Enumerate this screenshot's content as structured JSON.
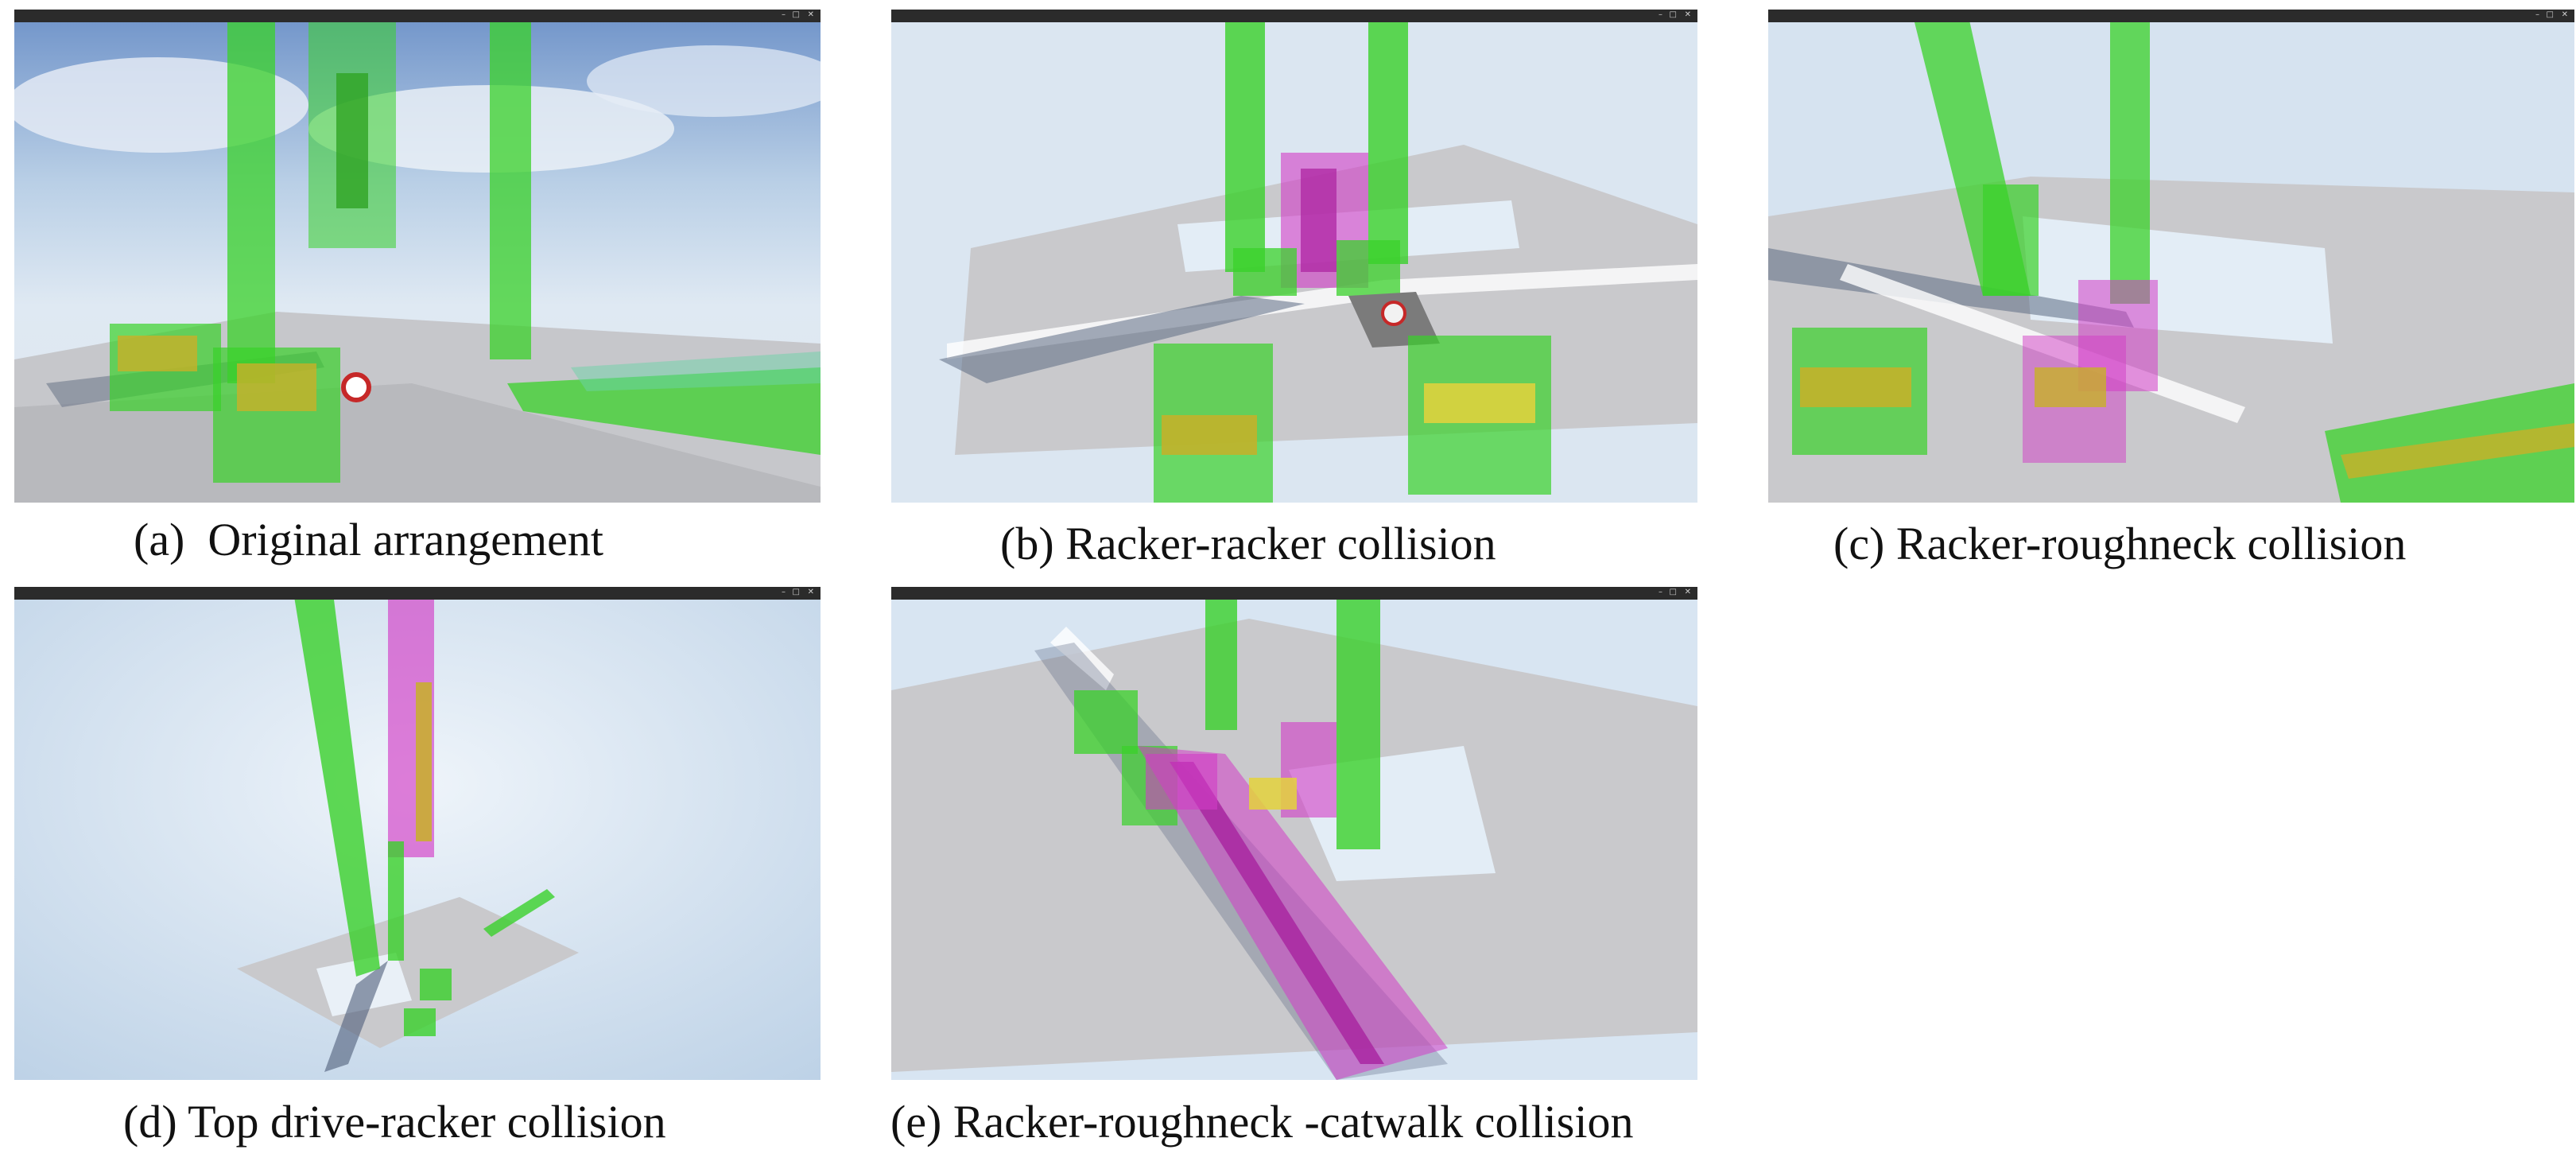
{
  "figure": {
    "panels": [
      {
        "id": "a",
        "caption": "(a)  Original arrangement"
      },
      {
        "id": "b",
        "caption": "(b) Racker-racker collision"
      },
      {
        "id": "c",
        "caption": "(c) Racker-roughneck collision"
      },
      {
        "id": "d",
        "caption": "(d) Top drive-racker collision"
      },
      {
        "id": "e",
        "caption": "(e) Racker-roughneck -catwalk collision"
      }
    ]
  },
  "window": {
    "min_icon": "minimize-icon",
    "max_icon": "maximize-icon",
    "close_icon": "close-icon"
  },
  "colors": {
    "collision_free": "#39d12a",
    "collision": "#d23cc6",
    "floor": "#c9c9cc",
    "background": "#d8e6f2",
    "titlebar": "#2b2b2b"
  }
}
